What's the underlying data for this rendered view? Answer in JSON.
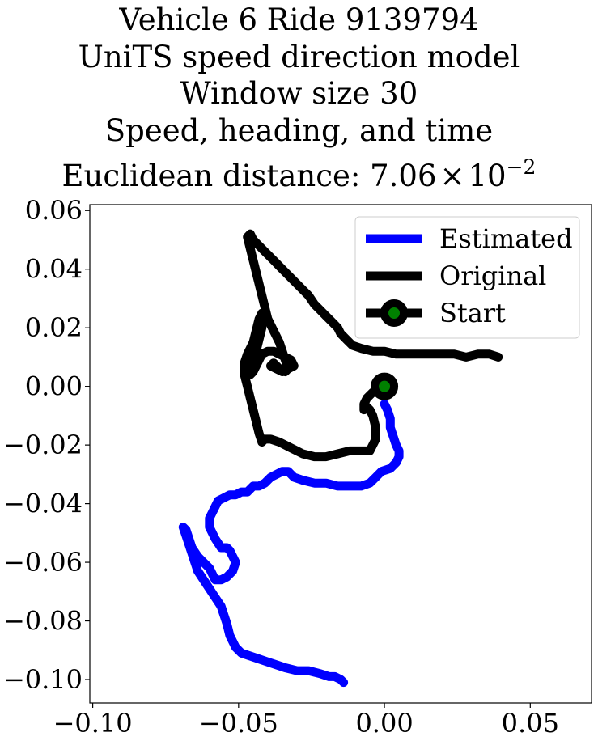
{
  "chart_data": {
    "type": "line",
    "title_lines": [
      "Vehicle 6 Ride 9139794",
      "UniTS speed direction model",
      "Window size 30",
      "Speed, heading, and time"
    ],
    "metric_label": "Euclidean distance: 7.06",
    "metric_times": "×",
    "metric_base": "10",
    "metric_exponent": "−2",
    "xlabel": "",
    "ylabel": "",
    "xlim": [
      -0.101,
      0.071
    ],
    "ylim": [
      -0.108,
      0.062
    ],
    "xticks": [
      -0.1,
      -0.05,
      0.0,
      0.05
    ],
    "xtick_labels": [
      "−0.10",
      "−0.05",
      "0.00",
      "0.05"
    ],
    "yticks": [
      0.06,
      0.04,
      0.02,
      0.0,
      -0.02,
      -0.04,
      -0.06,
      -0.08,
      -0.1
    ],
    "ytick_labels": [
      "0.06",
      "0.04",
      "0.02",
      "0.00",
      "−0.02",
      "−0.04",
      "−0.06",
      "−0.08",
      "−0.10"
    ],
    "grid": false,
    "legend_position": "top-right",
    "series": [
      {
        "name": "Estimated",
        "color": "#0000ff",
        "x": [
          0.0,
          0.001,
          0.002,
          0.002,
          0.003,
          0.004,
          0.005,
          0.005,
          0.004,
          0.003,
          0.002,
          -0.001,
          -0.003,
          -0.005,
          -0.008,
          -0.012,
          -0.016,
          -0.02,
          -0.024,
          -0.028,
          -0.031,
          -0.033,
          -0.035,
          -0.037,
          -0.039,
          -0.041,
          -0.043,
          -0.045,
          -0.046,
          -0.047,
          -0.049,
          -0.051,
          -0.053,
          -0.055,
          -0.057,
          -0.058,
          -0.059,
          -0.06,
          -0.06,
          -0.059,
          -0.058,
          -0.056,
          -0.055,
          -0.054,
          -0.053,
          -0.052,
          -0.051,
          -0.052,
          -0.054,
          -0.056,
          -0.058,
          -0.059,
          -0.06,
          -0.062,
          -0.064,
          -0.066,
          -0.067,
          -0.068,
          -0.069,
          -0.068,
          -0.067,
          -0.066,
          -0.065,
          -0.064,
          -0.062,
          -0.06,
          -0.058,
          -0.056,
          -0.055,
          -0.054,
          -0.053,
          -0.051,
          -0.049,
          -0.046,
          -0.043,
          -0.04,
          -0.037,
          -0.034,
          -0.03,
          -0.026,
          -0.022,
          -0.019,
          -0.017,
          -0.015,
          -0.014
        ],
        "y": [
          -0.006,
          -0.008,
          -0.011,
          -0.014,
          -0.017,
          -0.02,
          -0.022,
          -0.024,
          -0.026,
          -0.027,
          -0.028,
          -0.029,
          -0.031,
          -0.033,
          -0.034,
          -0.034,
          -0.034,
          -0.033,
          -0.033,
          -0.032,
          -0.031,
          -0.029,
          -0.029,
          -0.03,
          -0.031,
          -0.033,
          -0.034,
          -0.034,
          -0.035,
          -0.036,
          -0.036,
          -0.037,
          -0.037,
          -0.038,
          -0.039,
          -0.041,
          -0.043,
          -0.045,
          -0.048,
          -0.05,
          -0.052,
          -0.055,
          -0.055,
          -0.055,
          -0.056,
          -0.058,
          -0.06,
          -0.063,
          -0.065,
          -0.066,
          -0.066,
          -0.064,
          -0.062,
          -0.06,
          -0.058,
          -0.055,
          -0.052,
          -0.049,
          -0.048,
          -0.051,
          -0.054,
          -0.057,
          -0.06,
          -0.063,
          -0.066,
          -0.069,
          -0.072,
          -0.075,
          -0.078,
          -0.081,
          -0.085,
          -0.089,
          -0.091,
          -0.092,
          -0.093,
          -0.094,
          -0.095,
          -0.096,
          -0.097,
          -0.097,
          -0.098,
          -0.099,
          -0.099,
          -0.1,
          -0.101
        ]
      },
      {
        "name": "Original",
        "color": "#000000",
        "x": [
          0.039,
          0.036,
          0.032,
          0.028,
          0.024,
          0.02,
          0.016,
          0.012,
          0.008,
          0.004,
          0.0,
          -0.004,
          -0.008,
          -0.011,
          -0.013,
          -0.015,
          -0.016,
          -0.018,
          -0.02,
          -0.022,
          -0.024,
          -0.026,
          -0.029,
          -0.032,
          -0.035,
          -0.038,
          -0.041,
          -0.043,
          -0.045,
          -0.046,
          -0.047,
          -0.046,
          -0.045,
          -0.044,
          -0.043,
          -0.042,
          -0.041,
          -0.04,
          -0.038,
          -0.036,
          -0.035,
          -0.034,
          -0.033,
          -0.034,
          -0.036,
          -0.038,
          -0.039,
          -0.037,
          -0.035,
          -0.033,
          -0.031,
          -0.032,
          -0.034,
          -0.036,
          -0.038,
          -0.04,
          -0.042,
          -0.043,
          -0.044,
          -0.045,
          -0.046,
          -0.046,
          -0.045,
          -0.044,
          -0.043,
          -0.042,
          -0.042,
          -0.043,
          -0.044,
          -0.045,
          -0.047,
          -0.048,
          -0.048,
          -0.047,
          -0.046,
          -0.045,
          -0.044,
          -0.043,
          -0.042,
          -0.041,
          -0.039,
          -0.036,
          -0.032,
          -0.028,
          -0.024,
          -0.02,
          -0.016,
          -0.012,
          -0.008,
          -0.005,
          -0.003,
          -0.003,
          -0.004,
          -0.005,
          -0.006,
          -0.007,
          -0.007,
          -0.006,
          -0.004,
          -0.002,
          0.0
        ],
        "y": [
          0.01,
          0.011,
          0.011,
          0.01,
          0.011,
          0.011,
          0.011,
          0.011,
          0.011,
          0.011,
          0.012,
          0.012,
          0.013,
          0.014,
          0.016,
          0.018,
          0.02,
          0.022,
          0.024,
          0.026,
          0.028,
          0.031,
          0.034,
          0.037,
          0.04,
          0.043,
          0.046,
          0.048,
          0.05,
          0.052,
          0.051,
          0.047,
          0.043,
          0.039,
          0.035,
          0.031,
          0.027,
          0.023,
          0.019,
          0.015,
          0.012,
          0.009,
          0.006,
          0.005,
          0.006,
          0.008,
          0.007,
          0.006,
          0.005,
          0.006,
          0.007,
          0.009,
          0.01,
          0.011,
          0.012,
          0.012,
          0.011,
          0.009,
          0.007,
          0.005,
          0.004,
          0.006,
          0.009,
          0.012,
          0.016,
          0.02,
          0.025,
          0.023,
          0.019,
          0.015,
          0.011,
          0.008,
          0.004,
          0.0,
          -0.004,
          -0.008,
          -0.012,
          -0.016,
          -0.019,
          -0.018,
          -0.018,
          -0.019,
          -0.021,
          -0.023,
          -0.024,
          -0.024,
          -0.023,
          -0.022,
          -0.022,
          -0.022,
          -0.018,
          -0.014,
          -0.01,
          -0.008,
          -0.007,
          -0.008,
          -0.006,
          -0.004,
          -0.002,
          -0.001,
          0.0
        ]
      }
    ],
    "start_point": {
      "name": "Start",
      "x": 0.0,
      "y": 0.0,
      "marker_color": "#008000",
      "edge_color": "#000000"
    }
  }
}
